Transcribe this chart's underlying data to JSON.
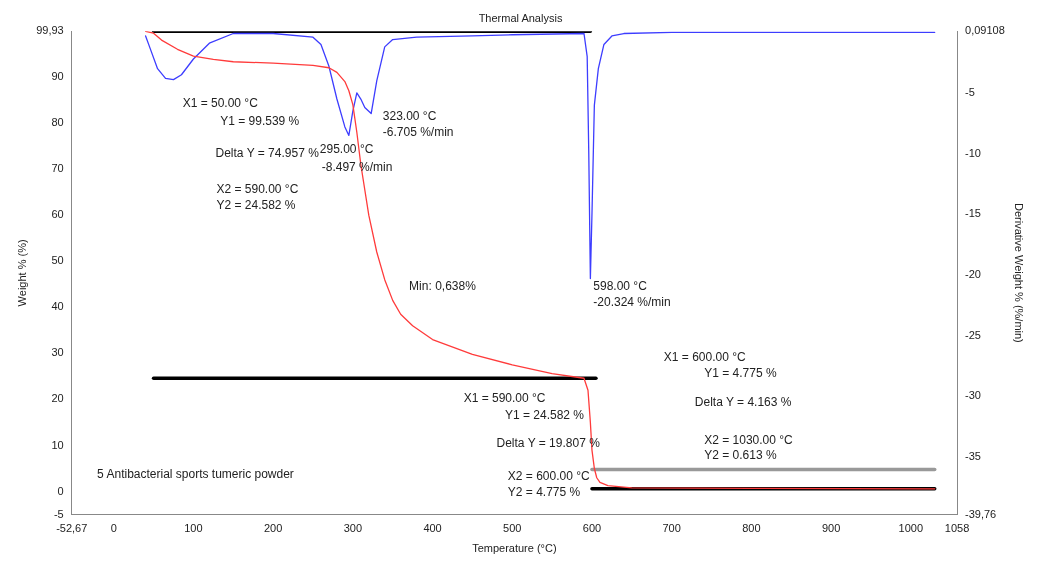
{
  "chart_data": {
    "type": "line",
    "title": "Thermal Analysis",
    "xlabel": "Temperature (°C)",
    "ylabel": "Weight % (%)",
    "y2label": "Derivative Weight % (%/min)",
    "xlim": [
      -52.67,
      1058
    ],
    "xticks": [
      {
        "value": -52.67,
        "label": "-52,67"
      },
      0,
      100,
      200,
      300,
      400,
      500,
      600,
      700,
      800,
      900,
      1000,
      1058
    ],
    "ylim": [
      -5,
      99.93
    ],
    "yticks": [
      -5,
      0,
      10,
      20,
      30,
      40,
      50,
      60,
      70,
      80,
      90,
      {
        "value": 99.93,
        "label": "99,93"
      }
    ],
    "y2lim": [
      -39.76,
      0.09108
    ],
    "y2ticks": [
      {
        "value": 0.09108,
        "label": "0,09108"
      },
      -5,
      -10,
      -15,
      -20,
      -25,
      -30,
      -35,
      {
        "value": -39.76,
        "label": "-39,76"
      }
    ],
    "grid": false,
    "legend": false,
    "marker": "none",
    "line_style": "solid",
    "series": [
      {
        "color": "#ff3b3b",
        "x": [
          40,
          50,
          60,
          80,
          100,
          125,
          150,
          200,
          250,
          270,
          280,
          290,
          295,
          300,
          305,
          310,
          320,
          330,
          340,
          350,
          360,
          375,
          400,
          450,
          500,
          550,
          590,
          595,
          598,
          600,
          603,
          606,
          610,
          620,
          650,
          800,
          1030
        ],
        "values": [
          99.9,
          99.5,
          98,
          96,
          94.5,
          93.8,
          93.3,
          93,
          92.5,
          92,
          91,
          89,
          87,
          84,
          78,
          71,
          60,
          52,
          46,
          41.5,
          38.5,
          36,
          33,
          29.8,
          27.5,
          25.6,
          24.6,
          22,
          15,
          9,
          5,
          3,
          2,
          1.3,
          0.8,
          0.7,
          0.6
        ]
      },
      {
        "color": "#3d3dff",
        "axis": "y2",
        "x": [
          40,
          45,
          55,
          65,
          75,
          85,
          100,
          120,
          150,
          200,
          250,
          260,
          270,
          280,
          290,
          295,
          300,
          305,
          310,
          315,
          323,
          330,
          340,
          350,
          380,
          450,
          500,
          590,
          594,
          596,
          598,
          600,
          603,
          608,
          615,
          625,
          640,
          700,
          1030
        ],
        "values": [
          -0.3,
          -1.2,
          -3,
          -3.8,
          -3.9,
          -3.5,
          -2.2,
          -0.9,
          -0.1,
          -0.1,
          -0.4,
          -1,
          -2.8,
          -5.5,
          -7.8,
          -8.5,
          -6.5,
          -5,
          -5.5,
          -6.2,
          -6.7,
          -4,
          -1.2,
          -0.6,
          -0.4,
          -0.3,
          -0.2,
          -0.1,
          -2,
          -10,
          -20.3,
          -15,
          -6,
          -3,
          -1,
          -0.3,
          -0.1,
          0,
          0
        ]
      },
      {
        "color": "#000000",
        "x": [
          50,
          598
        ],
        "values": [
          99.9,
          99.9
        ]
      },
      {
        "color": "#000000",
        "x": [
          50,
          605
        ],
        "values": [
          24.6,
          24.6
        ]
      },
      {
        "color": "#999999",
        "x": [
          600,
          1030
        ],
        "values": [
          4.8,
          4.8
        ]
      },
      {
        "color": "#000000",
        "x": [
          600,
          1030
        ],
        "values": [
          0.6,
          0.6
        ]
      }
    ],
    "annotations": [
      "X1 = 50.00 °C",
      "Y1 = 99.539 %",
      "Delta Y = 74.957 %",
      "295.00 °C",
      "-8.497 %/min",
      "323.00 °C",
      "-6.705 %/min",
      "X2 = 590.00 °C",
      "Y2 = 24.582 %",
      "Min: 0,638%",
      "598.00 °C",
      "-20.324 %/min",
      "X1 = 600.00 °C",
      "Y1 = 4.775 %",
      "Delta Y = 4.163 %",
      "X2 = 1030.00 °C",
      "Y2 = 0.613 %",
      "X1 = 590.00 °C",
      "Y1 = 24.582 %",
      "Delta Y = 19.807 %",
      "X2 = 600.00 °C",
      "Y2 = 4.775 %",
      "5 Antibacterial sports tumeric powder"
    ]
  }
}
